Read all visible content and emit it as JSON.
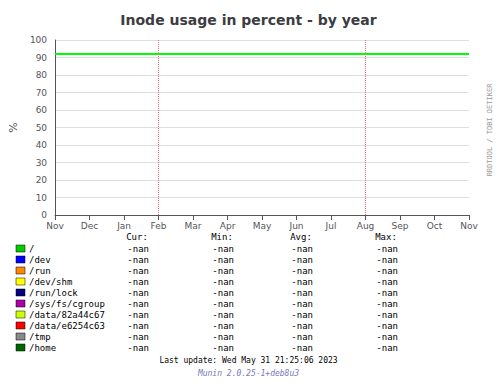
{
  "chart_data": {
    "type": "line",
    "title": "Inode usage in percent - by year",
    "ylabel": "%",
    "categories": [
      "Nov",
      "Dec",
      "Jan",
      "Feb",
      "Mar",
      "Apr",
      "May",
      "Jun",
      "Jul",
      "Aug",
      "Sep",
      "Oct",
      "Nov"
    ],
    "ylim": [
      0,
      100
    ],
    "yticks": [
      0,
      10,
      20,
      30,
      40,
      50,
      60,
      70,
      80,
      90,
      100
    ],
    "grid": true,
    "legend": "bottom",
    "stat_labels": [
      "Cur:",
      "Min:",
      "Avg:",
      "Max:"
    ],
    "series": [
      {
        "name": "/",
        "color": "#00CC00",
        "values": [
          null,
          null,
          null,
          null,
          null,
          null,
          null,
          null,
          null,
          null,
          null,
          null,
          null
        ],
        "stats": [
          "-nan",
          "-nan",
          "-nan",
          "-nan"
        ]
      },
      {
        "name": "/dev",
        "color": "#0000FF",
        "values": [
          null,
          null,
          null,
          null,
          null,
          null,
          null,
          null,
          null,
          null,
          null,
          null,
          null
        ],
        "stats": [
          "-nan",
          "-nan",
          "-nan",
          "-nan"
        ]
      },
      {
        "name": "/run",
        "color": "#FF8800",
        "values": [
          null,
          null,
          null,
          null,
          null,
          null,
          null,
          null,
          null,
          null,
          null,
          null,
          null
        ],
        "stats": [
          "-nan",
          "-nan",
          "-nan",
          "-nan"
        ]
      },
      {
        "name": "/dev/shm",
        "color": "#FFFF00",
        "values": [
          null,
          null,
          null,
          null,
          null,
          null,
          null,
          null,
          null,
          null,
          null,
          null,
          null
        ],
        "stats": [
          "-nan",
          "-nan",
          "-nan",
          "-nan"
        ]
      },
      {
        "name": "/run/lock",
        "color": "#000080",
        "values": [
          null,
          null,
          null,
          null,
          null,
          null,
          null,
          null,
          null,
          null,
          null,
          null,
          null
        ],
        "stats": [
          "-nan",
          "-nan",
          "-nan",
          "-nan"
        ]
      },
      {
        "name": "/sys/fs/cgroup",
        "color": "#AA00AA",
        "values": [
          null,
          null,
          null,
          null,
          null,
          null,
          null,
          null,
          null,
          null,
          null,
          null,
          null
        ],
        "stats": [
          "-nan",
          "-nan",
          "-nan",
          "-nan"
        ]
      },
      {
        "name": "/data/82a44c67",
        "color": "#CCFF00",
        "values": [
          null,
          null,
          null,
          null,
          null,
          null,
          null,
          null,
          null,
          null,
          null,
          null,
          null
        ],
        "stats": [
          "-nan",
          "-nan",
          "-nan",
          "-nan"
        ]
      },
      {
        "name": "/data/e6254c63",
        "color": "#FF0000",
        "values": [
          null,
          null,
          null,
          null,
          null,
          null,
          null,
          null,
          null,
          null,
          null,
          null,
          null
        ],
        "stats": [
          "-nan",
          "-nan",
          "-nan",
          "-nan"
        ]
      },
      {
        "name": "/tmp",
        "color": "#888888",
        "values": [
          null,
          null,
          null,
          null,
          null,
          null,
          null,
          null,
          null,
          null,
          null,
          null,
          null
        ],
        "stats": [
          "-nan",
          "-nan",
          "-nan",
          "-nan"
        ]
      },
      {
        "name": "/home",
        "color": "#006600",
        "values": [
          null,
          null,
          null,
          null,
          null,
          null,
          null,
          null,
          null,
          null,
          null,
          null,
          null
        ],
        "stats": [
          "-nan",
          "-nan",
          "-nan",
          "-nan"
        ]
      }
    ],
    "hlines": [
      {
        "y": 92,
        "color": "#00FF00"
      }
    ],
    "vlines": [
      {
        "x": "Feb",
        "color": "#FF6666"
      },
      {
        "x": "Aug",
        "color": "#FF6666"
      }
    ],
    "annotations": [
      "Last update: Wed May 31 21:25:06 2023",
      "Munin 2.0.25-1+deb8u3",
      "RRDTOOL / TOBI OETIKER"
    ]
  }
}
